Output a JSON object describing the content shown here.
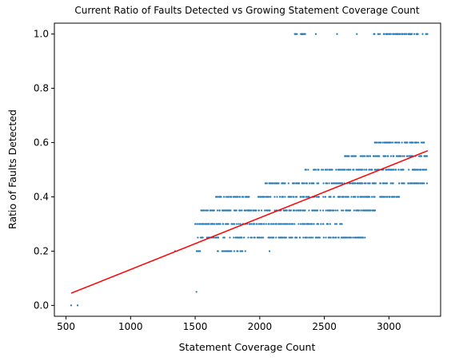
{
  "chart_data": {
    "type": "scatter",
    "title": "Current Ratio of Faults Detected vs Growing Statement Coverage Count",
    "xlabel": "Statement Coverage Count",
    "ylabel": "Ratio of Faults Detected",
    "xlim": [
      410,
      3400
    ],
    "ylim": [
      -0.04,
      1.04
    ],
    "x_ticks": [
      500,
      1000,
      1500,
      2000,
      2500,
      3000
    ],
    "y_ticks": [
      0.0,
      0.2,
      0.4,
      0.6,
      0.8,
      1.0
    ],
    "x_tick_labels": [
      "500",
      "1000",
      "1500",
      "2000",
      "2500",
      "3000"
    ],
    "y_tick_labels": [
      "0.0",
      "0.2",
      "0.4",
      "0.6",
      "0.8",
      "1.0"
    ],
    "grid": false,
    "colors": {
      "points": "#1f77b4",
      "fit": "#ff0000"
    },
    "series": [
      {
        "kind": "points",
        "groups": [
          {
            "y": 1.0,
            "ranges": [
              [
                2260,
                2360
              ],
              [
                2430,
                2440
              ],
              [
                2590,
                2600
              ],
              [
                2750,
                2760
              ],
              [
                2880,
                3300
              ]
            ]
          },
          {
            "y": 0.6,
            "ranges": [
              [
                2880,
                3300
              ]
            ]
          },
          {
            "y": 0.55,
            "ranges": [
              [
                2650,
                3300
              ]
            ]
          },
          {
            "y": 0.5,
            "ranges": [
              [
                2350,
                3300
              ]
            ]
          },
          {
            "y": 0.45,
            "ranges": [
              [
                2040,
                3300
              ]
            ]
          },
          {
            "y": 0.4,
            "ranges": [
              [
                1640,
                3080
              ]
            ]
          },
          {
            "y": 0.35,
            "ranges": [
              [
                1530,
                2920
              ]
            ]
          },
          {
            "y": 0.3,
            "ranges": [
              [
                1500,
                2650
              ]
            ]
          },
          {
            "y": 0.25,
            "ranges": [
              [
                1510,
                2820
              ]
            ]
          },
          {
            "y": 0.2,
            "ranges": [
              [
                1340,
                1350
              ],
              [
                1500,
                1540
              ],
              [
                1670,
                1900
              ],
              [
                2070,
                2080
              ]
            ]
          },
          {
            "y": 0.05,
            "ranges": [
              [
                1510,
                1510
              ]
            ]
          },
          {
            "y": 0.0,
            "ranges": [
              [
                540,
                540
              ],
              [
                590,
                590
              ]
            ]
          }
        ]
      },
      {
        "kind": "fit-line",
        "x": [
          540,
          3300
        ],
        "y": [
          0.045,
          0.57
        ]
      }
    ]
  }
}
